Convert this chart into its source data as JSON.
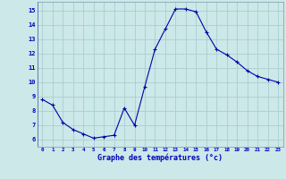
{
  "hours": [
    0,
    1,
    2,
    3,
    4,
    5,
    6,
    7,
    8,
    9,
    10,
    11,
    12,
    13,
    14,
    15,
    16,
    17,
    18,
    19,
    20,
    21,
    22,
    23
  ],
  "temperatures": [
    8.8,
    8.4,
    7.2,
    6.7,
    6.4,
    6.1,
    6.2,
    6.3,
    8.2,
    7.0,
    9.7,
    12.3,
    13.7,
    15.1,
    15.1,
    14.9,
    13.5,
    12.3,
    11.9,
    11.4,
    10.8,
    10.4,
    10.2,
    10.0
  ],
  "bg_color": "#cce8e8",
  "grid_color": "#aacece",
  "line_color": "#0000aa",
  "marker_color": "#0000aa",
  "xlabel": "Graphe des températures (°c)",
  "xlabel_color": "#0000bb",
  "tick_color": "#0000bb",
  "ylim": [
    5.5,
    15.6
  ],
  "yticks": [
    6,
    7,
    8,
    9,
    10,
    11,
    12,
    13,
    14,
    15
  ],
  "xlim": [
    -0.5,
    23.5
  ],
  "xticks": [
    0,
    1,
    2,
    3,
    4,
    5,
    6,
    7,
    8,
    9,
    10,
    11,
    12,
    13,
    14,
    15,
    16,
    17,
    18,
    19,
    20,
    21,
    22,
    23
  ],
  "xtick_labels": [
    "0",
    "1",
    "2",
    "3",
    "4",
    "5",
    "6",
    "7",
    "8",
    "9",
    "10",
    "11",
    "12",
    "13",
    "14",
    "15",
    "16",
    "17",
    "18",
    "19",
    "20",
    "21",
    "22",
    "23"
  ]
}
